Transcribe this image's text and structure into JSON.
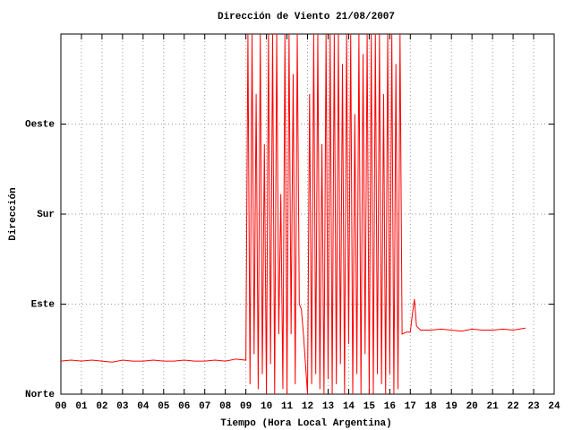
{
  "chart_data": {
    "type": "line",
    "title": "Dirección de Viento 21/08/2007",
    "xlabel": "Tiempo (Hora Local Argentina)",
    "ylabel": "Dirección",
    "xlim": [
      0,
      24
    ],
    "ylim": [
      0,
      360
    ],
    "grid": true,
    "xticks": [
      {
        "value": 0,
        "label": "00"
      },
      {
        "value": 1,
        "label": "01"
      },
      {
        "value": 2,
        "label": "02"
      },
      {
        "value": 3,
        "label": "03"
      },
      {
        "value": 4,
        "label": "04"
      },
      {
        "value": 5,
        "label": "05"
      },
      {
        "value": 6,
        "label": "06"
      },
      {
        "value": 7,
        "label": "07"
      },
      {
        "value": 8,
        "label": "08"
      },
      {
        "value": 9,
        "label": "09"
      },
      {
        "value": 10,
        "label": "10"
      },
      {
        "value": 11,
        "label": "11"
      },
      {
        "value": 12,
        "label": "12"
      },
      {
        "value": 13,
        "label": "13"
      },
      {
        "value": 14,
        "label": "14"
      },
      {
        "value": 15,
        "label": "15"
      },
      {
        "value": 16,
        "label": "16"
      },
      {
        "value": 17,
        "label": "17"
      },
      {
        "value": 18,
        "label": "18"
      },
      {
        "value": 19,
        "label": "19"
      },
      {
        "value": 20,
        "label": "20"
      },
      {
        "value": 21,
        "label": "21"
      },
      {
        "value": 22,
        "label": "22"
      },
      {
        "value": 23,
        "label": "23"
      },
      {
        "value": 24,
        "label": "24"
      }
    ],
    "yticks": [
      {
        "value": 0,
        "label": "Norte"
      },
      {
        "value": 90,
        "label": "Este"
      },
      {
        "value": 180,
        "label": "Sur"
      },
      {
        "value": 270,
        "label": "Oeste"
      }
    ],
    "x": [
      0,
      0.5,
      1,
      1.5,
      2,
      2.5,
      3,
      3.5,
      4,
      4.5,
      5,
      5.5,
      6,
      6.5,
      7,
      7.5,
      8,
      8.5,
      9,
      9.1,
      9.2,
      9.3,
      9.4,
      9.5,
      9.6,
      9.7,
      9.8,
      9.9,
      10.0,
      10.1,
      10.2,
      10.3,
      10.4,
      10.5,
      10.6,
      10.7,
      10.8,
      10.9,
      11.0,
      11.1,
      11.2,
      11.3,
      11.4,
      11.5,
      11.6,
      11.7,
      11.8,
      11.9,
      12.0,
      12.1,
      12.2,
      12.3,
      12.4,
      12.5,
      12.6,
      12.7,
      12.8,
      12.9,
      13.0,
      13.1,
      13.2,
      13.3,
      13.4,
      13.5,
      13.6,
      13.7,
      13.8,
      13.9,
      14.0,
      14.1,
      14.2,
      14.3,
      14.4,
      14.5,
      14.6,
      14.7,
      14.8,
      14.9,
      15.0,
      15.1,
      15.2,
      15.3,
      15.4,
      15.5,
      15.6,
      15.7,
      15.8,
      15.9,
      16.0,
      16.1,
      16.2,
      16.3,
      16.4,
      16.5,
      16.6,
      16.8,
      17.0,
      17.1,
      17.2,
      17.3,
      17.5,
      18,
      18.5,
      19,
      19.5,
      20,
      20.5,
      21,
      21.5,
      22,
      22.6
    ],
    "series": [
      {
        "name": "Dirección",
        "color": "#ff0000",
        "values": [
          33,
          34,
          33,
          34,
          33,
          32,
          34,
          33,
          33,
          34,
          33,
          33,
          34,
          33,
          33,
          34,
          33,
          35,
          34,
          360,
          10,
          360,
          40,
          300,
          5,
          360,
          20,
          250,
          0,
          360,
          30,
          360,
          0,
          360,
          60,
          200,
          5,
          360,
          0,
          360,
          60,
          320,
          10,
          360,
          90,
          85,
          60,
          30,
          0,
          300,
          10,
          360,
          20,
          360,
          5,
          250,
          0,
          360,
          15,
          360,
          0,
          360,
          10,
          360,
          30,
          330,
          0,
          360,
          50,
          360,
          0,
          280,
          20,
          360,
          0,
          340,
          40,
          360,
          0,
          360,
          0,
          360,
          20,
          360,
          10,
          300,
          0,
          360,
          20,
          360,
          0,
          330,
          5,
          360,
          60,
          62,
          62,
          80,
          95,
          68,
          64,
          64,
          65,
          64,
          63,
          65,
          64,
          64,
          65,
          64,
          66
        ]
      }
    ]
  }
}
